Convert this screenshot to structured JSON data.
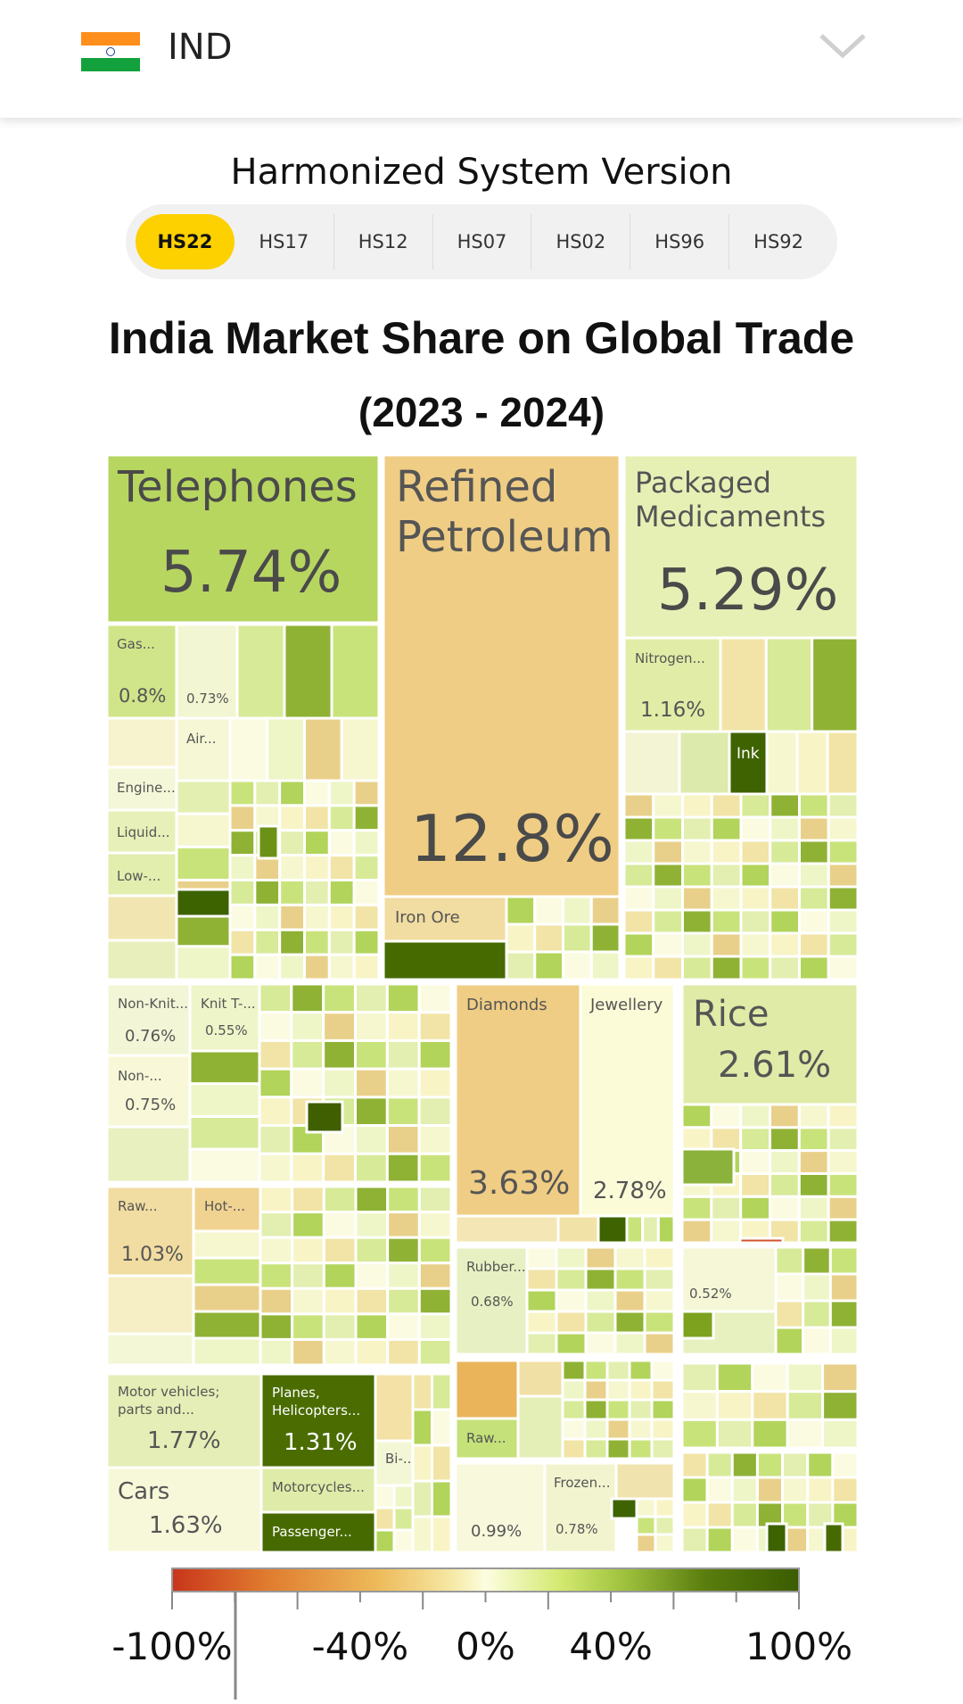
{
  "header": {
    "country": "IND",
    "flag_icon": "india-flag-icon",
    "dropdown_icon": "chevron-down-icon"
  },
  "hs": {
    "title": "Harmonized System Version",
    "tabs": [
      "HS22",
      "HS17",
      "HS12",
      "HS07",
      "HS02",
      "HS96",
      "HS92"
    ],
    "active": "HS22",
    "active_color": "#fdd000"
  },
  "chart_data": {
    "type": "treemap",
    "title": "India Market Share on Global Trade",
    "subtitle": "(2023 - 2024)",
    "labeled_tiles": [
      {
        "name": "Telephones",
        "value": "5.74%"
      },
      {
        "name": "Refined Petroleum",
        "value": "12.8%"
      },
      {
        "name": "Packaged Medicaments",
        "value": "5.29%"
      },
      {
        "name": "Gas...",
        "value": "0.8%"
      },
      {
        "name": "",
        "value": "0.73%"
      },
      {
        "name": "Air...",
        "value": ""
      },
      {
        "name": "Engine...",
        "value": ""
      },
      {
        "name": "Liquid...",
        "value": ""
      },
      {
        "name": "Low-...",
        "value": ""
      },
      {
        "name": "Nitrogen...",
        "value": "1.16%"
      },
      {
        "name": "Ink",
        "value": ""
      },
      {
        "name": "Iron Ore",
        "value": ""
      },
      {
        "name": "Non-Knit...",
        "value": "0.76%"
      },
      {
        "name": "Knit T-...",
        "value": "0.55%"
      },
      {
        "name": "Non-...",
        "value": "0.75%"
      },
      {
        "name": "Diamonds",
        "value": "3.63%"
      },
      {
        "name": "Jewellery",
        "value": "2.78%"
      },
      {
        "name": "Rice",
        "value": "2.61%"
      },
      {
        "name": "Raw...",
        "value": "1.03%"
      },
      {
        "name": "Hot-...",
        "value": ""
      },
      {
        "name": "Rubber...",
        "value": "0.68%"
      },
      {
        "name": "",
        "value": "0.52%"
      },
      {
        "name": "Motor vehicles; parts and...",
        "value": "1.77%"
      },
      {
        "name": "Planes, Helicopters...",
        "value": "1.31%"
      },
      {
        "name": "Bi-...",
        "value": ""
      },
      {
        "name": "Cars",
        "value": "1.63%"
      },
      {
        "name": "Motorcycles...",
        "value": ""
      },
      {
        "name": "Passenger...",
        "value": ""
      },
      {
        "name": "Raw...",
        "value": ""
      },
      {
        "name": "",
        "value": "0.99%"
      },
      {
        "name": "Frozen...",
        "value": "0.78%"
      }
    ],
    "color_scale": {
      "ticks": [
        "-100%",
        "-40%",
        "0%",
        "40%",
        "100%"
      ],
      "stops": [
        "#c8351b",
        "#e07b2e",
        "#edbb5a",
        "#f6eaa8",
        "#fdfde0",
        "#d3e96f",
        "#9fc23e",
        "#5a7d0e",
        "#3b5c00"
      ]
    }
  }
}
